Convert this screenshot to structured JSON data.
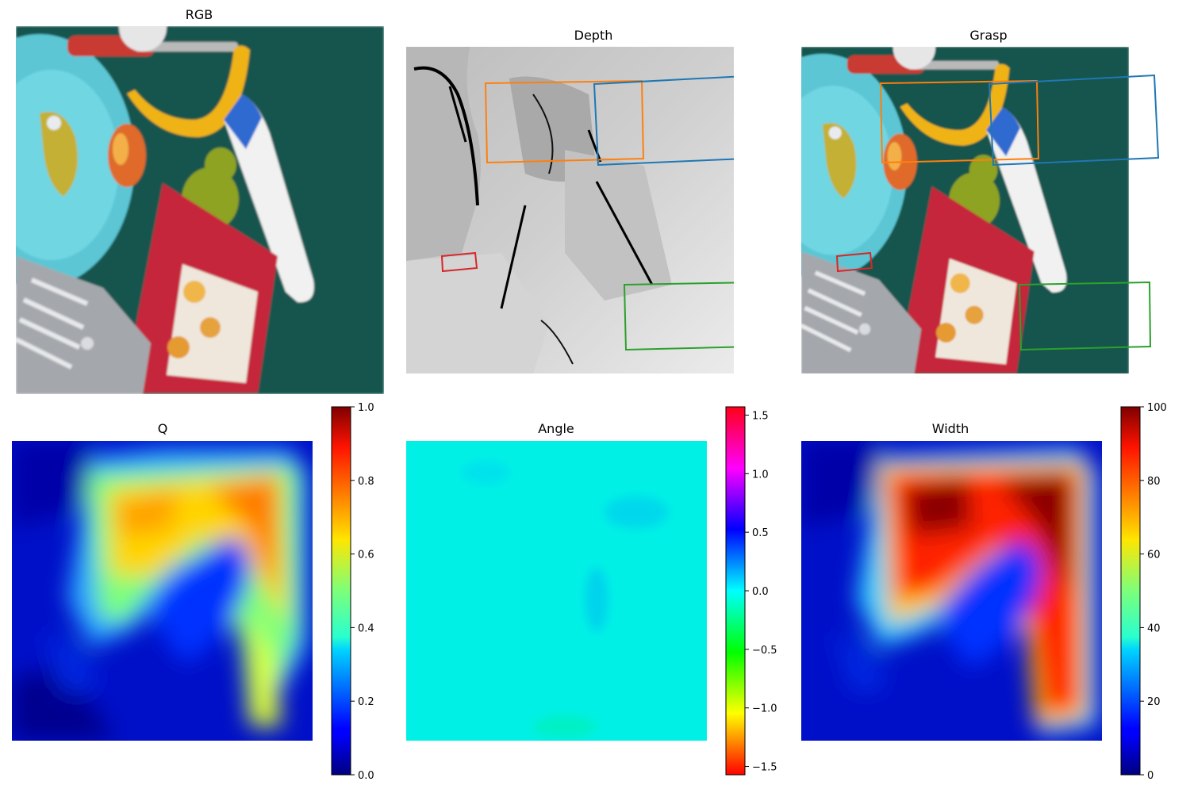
{
  "chart_data": [
    {
      "type": "image",
      "title": "RGB",
      "scene": [
        "teal-bowl",
        "screwdriver",
        "banana",
        "peach",
        "pear",
        "white-tube",
        "cracker-box",
        "metal-rack"
      ]
    },
    {
      "type": "image",
      "title": "Depth",
      "grasps": [
        {
          "name": "grasp-orange",
          "color": "#ff7f0e"
        },
        {
          "name": "grasp-blue",
          "color": "#1f77b4"
        },
        {
          "name": "grasp-red",
          "color": "#d62728"
        },
        {
          "name": "grasp-green",
          "color": "#2ca02c"
        }
      ]
    },
    {
      "type": "image",
      "title": "Grasp",
      "grasps": [
        {
          "name": "grasp-orange",
          "color": "#ff7f0e"
        },
        {
          "name": "grasp-blue",
          "color": "#1f77b4"
        },
        {
          "name": "grasp-red",
          "color": "#d62728"
        },
        {
          "name": "grasp-green",
          "color": "#2ca02c"
        }
      ]
    },
    {
      "type": "heatmap",
      "title": "Q",
      "colormap": "jet",
      "colorbar": {
        "min": 0.0,
        "max": 1.0,
        "ticks": [
          "0.0",
          "0.2",
          "0.4",
          "0.6",
          "0.8",
          "1.0"
        ]
      }
    },
    {
      "type": "heatmap",
      "title": "Angle",
      "colormap": "hsv",
      "colorbar": {
        "min": -1.5708,
        "max": 1.5708,
        "ticks": [
          "−1.5",
          "−1.0",
          "−0.5",
          "0.0",
          "0.5",
          "1.0",
          "1.5"
        ],
        "tick_values": [
          -1.5,
          -1.0,
          -0.5,
          0.0,
          0.5,
          1.0,
          1.5
        ]
      }
    },
    {
      "type": "heatmap",
      "title": "Width",
      "colormap": "jet",
      "colorbar": {
        "min": 0,
        "max": 100,
        "ticks": [
          "0",
          "20",
          "40",
          "60",
          "80",
          "100"
        ]
      }
    }
  ]
}
